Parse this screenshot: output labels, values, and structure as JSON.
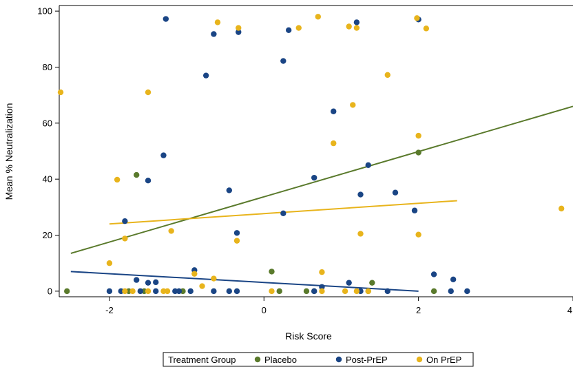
{
  "chart_data": {
    "type": "scatter",
    "xlabel": "Risk Score",
    "ylabel": "Mean % Neutralization",
    "xlim": [
      -2.65,
      4.0
    ],
    "ylim": [
      -2,
      102
    ],
    "xticks": [
      -2,
      0,
      2,
      4
    ],
    "yticks": [
      0,
      20,
      40,
      60,
      80,
      100
    ],
    "grid": false,
    "legend": {
      "title": "Treatment Group",
      "placement": "bottom-center"
    },
    "series": [
      {
        "name": "Placebo",
        "color": "#5a7a2c",
        "points": [
          [
            -2.55,
            0
          ],
          [
            -1.65,
            41.5
          ],
          [
            -1.75,
            0
          ],
          [
            -1.55,
            0
          ],
          [
            -1.05,
            0
          ],
          [
            0.1,
            7
          ],
          [
            0.2,
            0
          ],
          [
            0.55,
            0
          ],
          [
            0.65,
            0
          ],
          [
            1.4,
            3
          ],
          [
            1.35,
            0
          ],
          [
            2.2,
            0
          ],
          [
            2.0,
            49.5
          ]
        ],
        "fit": {
          "x": [
            -2.5,
            4.0
          ],
          "y": [
            13.5,
            66
          ]
        }
      },
      {
        "name": "Post-PrEP",
        "color": "#1a4585",
        "points": [
          [
            -2.0,
            0
          ],
          [
            -1.85,
            0
          ],
          [
            -1.8,
            25
          ],
          [
            -1.65,
            4
          ],
          [
            -1.6,
            0
          ],
          [
            -1.5,
            3
          ],
          [
            -1.5,
            39.5
          ],
          [
            -1.4,
            3.2
          ],
          [
            -1.4,
            0
          ],
          [
            -1.3,
            48.5
          ],
          [
            -1.27,
            97.2
          ],
          [
            -1.15,
            0
          ],
          [
            -1.1,
            0
          ],
          [
            -0.95,
            0
          ],
          [
            -0.9,
            7.5
          ],
          [
            -0.75,
            77
          ],
          [
            -0.65,
            91.8
          ],
          [
            -0.65,
            0
          ],
          [
            -0.45,
            36
          ],
          [
            -0.45,
            0
          ],
          [
            -0.35,
            20.8
          ],
          [
            -0.35,
            0
          ],
          [
            -0.33,
            92.5
          ],
          [
            0.25,
            82.2
          ],
          [
            0.25,
            27.8
          ],
          [
            0.32,
            93.2
          ],
          [
            0.65,
            40.5
          ],
          [
            0.65,
            0
          ],
          [
            0.75,
            1.5
          ],
          [
            0.9,
            64.2
          ],
          [
            1.1,
            3
          ],
          [
            1.2,
            96
          ],
          [
            1.25,
            34.5
          ],
          [
            1.25,
            0
          ],
          [
            1.35,
            45
          ],
          [
            1.6,
            0
          ],
          [
            1.7,
            35.2
          ],
          [
            1.95,
            28.8
          ],
          [
            2.0,
            97
          ],
          [
            2.2,
            6
          ],
          [
            2.45,
            4.2
          ],
          [
            2.42,
            0
          ],
          [
            2.63,
            0
          ]
        ],
        "fit": {
          "x": [
            -2.5,
            2.0
          ],
          "y": [
            7,
            0
          ]
        }
      },
      {
        "name": "On PrEP",
        "color": "#e8b41c",
        "points": [
          [
            -2.65,
            71
          ],
          [
            -2.0,
            10
          ],
          [
            -1.9,
            39.8
          ],
          [
            -1.8,
            18.8
          ],
          [
            -1.8,
            0
          ],
          [
            -1.7,
            0
          ],
          [
            -1.5,
            71
          ],
          [
            -1.5,
            0
          ],
          [
            -1.3,
            0
          ],
          [
            -1.25,
            0
          ],
          [
            -1.2,
            21.5
          ],
          [
            -0.9,
            6.2
          ],
          [
            -0.8,
            1.8
          ],
          [
            -0.65,
            4.5
          ],
          [
            -0.6,
            96
          ],
          [
            -0.35,
            18
          ],
          [
            -0.33,
            94
          ],
          [
            0.1,
            0
          ],
          [
            0.45,
            94
          ],
          [
            0.7,
            98
          ],
          [
            0.75,
            6.8
          ],
          [
            0.75,
            0
          ],
          [
            0.9,
            52.8
          ],
          [
            1.05,
            0
          ],
          [
            1.1,
            94.5
          ],
          [
            1.15,
            66.5
          ],
          [
            1.2,
            0
          ],
          [
            1.2,
            94
          ],
          [
            1.25,
            20.5
          ],
          [
            1.35,
            0
          ],
          [
            1.6,
            77.2
          ],
          [
            1.98,
            97.5
          ],
          [
            2.0,
            20.2
          ],
          [
            2.0,
            55.5
          ],
          [
            2.1,
            93.8
          ],
          [
            3.85,
            29.5
          ]
        ],
        "fit": {
          "x": [
            -2.0,
            2.5
          ],
          "y": [
            24,
            32.3
          ]
        }
      }
    ]
  }
}
